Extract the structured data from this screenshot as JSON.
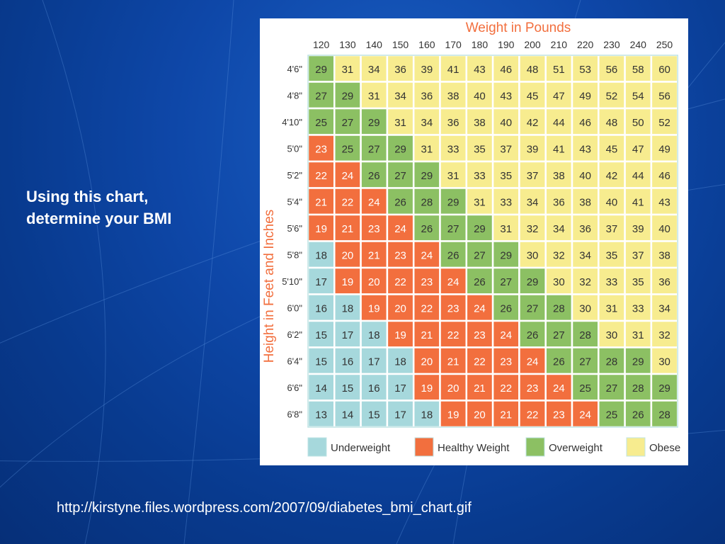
{
  "slide": {
    "line1": "Using this chart,",
    "line2": "determine your BMI",
    "source": "http://kirstyne.files.wordpress.com/2007/09/diabetes_bmi_chart.gif"
  },
  "colors": {
    "underweight": "#a6d8dc",
    "healthy": "#f26f3e",
    "overweight": "#8cc063",
    "obese": "#f7ec8f",
    "grid": "#ffffff",
    "title": "#f26f3e",
    "background": "#0e47a8"
  },
  "chart_data": {
    "type": "table",
    "title": "Weight in Pounds",
    "ylabel": "Height in Feet and Inches",
    "columns": [
      "120",
      "130",
      "140",
      "150",
      "160",
      "170",
      "180",
      "190",
      "200",
      "210",
      "220",
      "230",
      "240",
      "250"
    ],
    "rows": [
      "4'6\"",
      "4'8\"",
      "4'10\"",
      "5'0\"",
      "5'2\"",
      "5'4\"",
      "5'6\"",
      "5'8\"",
      "5'10\"",
      "6'0\"",
      "6'2\"",
      "6'4\"",
      "6'6\"",
      "6'8\""
    ],
    "values": [
      [
        29,
        31,
        34,
        36,
        39,
        41,
        43,
        46,
        48,
        51,
        53,
        56,
        58,
        60
      ],
      [
        27,
        29,
        31,
        34,
        36,
        38,
        40,
        43,
        45,
        47,
        49,
        52,
        54,
        56
      ],
      [
        25,
        27,
        29,
        31,
        34,
        36,
        38,
        40,
        42,
        44,
        46,
        48,
        50,
        52
      ],
      [
        23,
        25,
        27,
        29,
        31,
        33,
        35,
        37,
        39,
        41,
        43,
        45,
        47,
        49
      ],
      [
        22,
        24,
        26,
        27,
        29,
        31,
        33,
        35,
        37,
        38,
        40,
        42,
        44,
        46
      ],
      [
        21,
        22,
        24,
        26,
        28,
        29,
        31,
        33,
        34,
        36,
        38,
        40,
        41,
        43
      ],
      [
        19,
        21,
        23,
        24,
        26,
        27,
        29,
        31,
        32,
        34,
        36,
        37,
        39,
        40
      ],
      [
        18,
        20,
        21,
        23,
        24,
        26,
        27,
        29,
        30,
        32,
        34,
        35,
        37,
        38
      ],
      [
        17,
        19,
        20,
        22,
        23,
        24,
        26,
        27,
        29,
        30,
        32,
        33,
        35,
        36
      ],
      [
        16,
        18,
        19,
        20,
        22,
        23,
        24,
        26,
        27,
        28,
        30,
        31,
        33,
        34
      ],
      [
        15,
        17,
        18,
        19,
        21,
        22,
        23,
        24,
        26,
        27,
        28,
        30,
        31,
        32
      ],
      [
        15,
        16,
        17,
        18,
        20,
        21,
        22,
        23,
        24,
        26,
        27,
        28,
        29,
        30
      ],
      [
        14,
        15,
        16,
        17,
        19,
        20,
        21,
        22,
        23,
        24,
        25,
        27,
        28,
        29
      ],
      [
        13,
        14,
        15,
        17,
        18,
        19,
        20,
        21,
        22,
        23,
        24,
        25,
        26,
        28
      ]
    ],
    "categories": [
      [
        "O",
        "Ob",
        "Ob",
        "Ob",
        "Ob",
        "Ob",
        "Ob",
        "Ob",
        "Ob",
        "Ob",
        "Ob",
        "Ob",
        "Ob",
        "Ob"
      ],
      [
        "O",
        "O",
        "Ob",
        "Ob",
        "Ob",
        "Ob",
        "Ob",
        "Ob",
        "Ob",
        "Ob",
        "Ob",
        "Ob",
        "Ob",
        "Ob"
      ],
      [
        "O",
        "O",
        "O",
        "Ob",
        "Ob",
        "Ob",
        "Ob",
        "Ob",
        "Ob",
        "Ob",
        "Ob",
        "Ob",
        "Ob",
        "Ob"
      ],
      [
        "H",
        "O",
        "O",
        "O",
        "Ob",
        "Ob",
        "Ob",
        "Ob",
        "Ob",
        "Ob",
        "Ob",
        "Ob",
        "Ob",
        "Ob"
      ],
      [
        "H",
        "H",
        "O",
        "O",
        "O",
        "Ob",
        "Ob",
        "Ob",
        "Ob",
        "Ob",
        "Ob",
        "Ob",
        "Ob",
        "Ob"
      ],
      [
        "H",
        "H",
        "H",
        "O",
        "O",
        "O",
        "Ob",
        "Ob",
        "Ob",
        "Ob",
        "Ob",
        "Ob",
        "Ob",
        "Ob"
      ],
      [
        "H",
        "H",
        "H",
        "H",
        "O",
        "O",
        "O",
        "Ob",
        "Ob",
        "Ob",
        "Ob",
        "Ob",
        "Ob",
        "Ob"
      ],
      [
        "U",
        "H",
        "H",
        "H",
        "H",
        "O",
        "O",
        "O",
        "Ob",
        "Ob",
        "Ob",
        "Ob",
        "Ob",
        "Ob"
      ],
      [
        "U",
        "H",
        "H",
        "H",
        "H",
        "H",
        "O",
        "O",
        "O",
        "Ob",
        "Ob",
        "Ob",
        "Ob",
        "Ob"
      ],
      [
        "U",
        "U",
        "H",
        "H",
        "H",
        "H",
        "H",
        "O",
        "O",
        "O",
        "Ob",
        "Ob",
        "Ob",
        "Ob"
      ],
      [
        "U",
        "U",
        "U",
        "H",
        "H",
        "H",
        "H",
        "H",
        "O",
        "O",
        "O",
        "Ob",
        "Ob",
        "Ob"
      ],
      [
        "U",
        "U",
        "U",
        "U",
        "H",
        "H",
        "H",
        "H",
        "H",
        "O",
        "O",
        "O",
        "O",
        "Ob"
      ],
      [
        "U",
        "U",
        "U",
        "U",
        "H",
        "H",
        "H",
        "H",
        "H",
        "H",
        "O",
        "O",
        "O",
        "O"
      ],
      [
        "U",
        "U",
        "U",
        "U",
        "U",
        "H",
        "H",
        "H",
        "H",
        "H",
        "H",
        "O",
        "O",
        "O"
      ]
    ],
    "legend": [
      {
        "key": "U",
        "label": "Underweight"
      },
      {
        "key": "H",
        "label": "Healthy Weight"
      },
      {
        "key": "O",
        "label": "Overweight"
      },
      {
        "key": "Ob",
        "label": "Obese"
      }
    ],
    "legend_position": "bottom"
  }
}
